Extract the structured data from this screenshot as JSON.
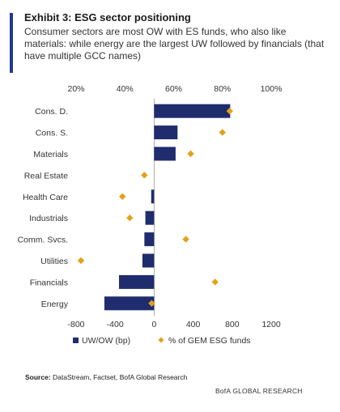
{
  "exhibit": {
    "title": "Exhibit 3: ESG sector positioning",
    "subtitle": "Consumer sectors are most OW with ES funds, who also like materials: while energy are the largest UW followed by financials (that have multiple GCC names)"
  },
  "source_label": "Source:",
  "source_text": "DataStream, Factset, BofA Global Research",
  "brand": "BofA GLOBAL RESEARCH",
  "colors": {
    "bar": "#1f2c6e",
    "marker": "#e3a21a",
    "accent": "#1f3a93"
  },
  "chart_data": {
    "type": "bar",
    "orientation": "horizontal",
    "categories": [
      "Cons. D.",
      "Cons. S.",
      "Materials",
      "Real Estate",
      "Health Care",
      "Industrials",
      "Comm. Svcs.",
      "Utilities",
      "Financials",
      "Energy"
    ],
    "series": [
      {
        "name": "UW/OW (bp)",
        "axis": "bottom",
        "values": [
          780,
          240,
          220,
          0,
          -30,
          -90,
          -100,
          -120,
          -360,
          -510
        ]
      },
      {
        "name": "% of GEM ESG funds",
        "axis": "top",
        "values": [
          83,
          80,
          67,
          48,
          39,
          42,
          65,
          22,
          77,
          51
        ]
      }
    ],
    "bottom_axis": {
      "ticks": [
        "-800",
        "-400",
        "0",
        "400",
        "800",
        "1200"
      ],
      "range": [
        -800,
        1200
      ]
    },
    "top_axis": {
      "ticks": [
        "20%",
        "40%",
        "60%",
        "80%",
        "100%"
      ],
      "range": [
        20,
        100
      ]
    },
    "legend": [
      "UW/OW (bp)",
      "% of GEM ESG funds"
    ],
    "legend_position": "bottom"
  }
}
